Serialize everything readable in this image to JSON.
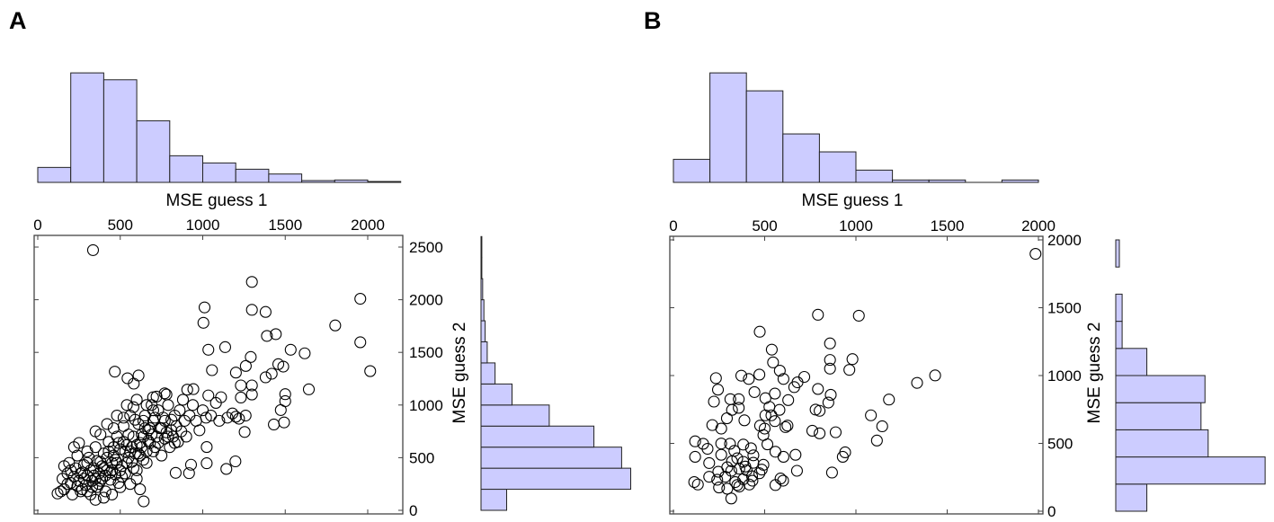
{
  "chart_data": [
    {
      "type": "scatter",
      "panel_label": "A",
      "xlabel": "MSE guess 1",
      "ylabel": "MSE guess 2",
      "xlim": [
        0,
        2200
      ],
      "ylim": [
        0,
        2600
      ],
      "xticks": [
        0,
        500,
        1000,
        1500,
        2000
      ],
      "yticks": [
        0,
        500,
        1000,
        1500,
        2000,
        2500
      ],
      "hist_x": {
        "bin_width": 200,
        "start": 0,
        "values": [
          50,
          366,
          343,
          206,
          89,
          65,
          44,
          28,
          6,
          8,
          3
        ]
      },
      "hist_y": {
        "bin_width": 200,
        "start": 0,
        "values": [
          62,
          362,
          340,
          273,
          165,
          75,
          34,
          15,
          10,
          7,
          4,
          2,
          2
        ]
      },
      "points": [
        [
          335,
          2471
        ],
        [
          1298,
          2169
        ],
        [
          1955,
          2009
        ],
        [
          1011,
          1927
        ],
        [
          1298,
          1904
        ],
        [
          1381,
          1884
        ],
        [
          1004,
          1781
        ],
        [
          1803,
          1756
        ],
        [
          1955,
          1596
        ],
        [
          1389,
          1656
        ],
        [
          1443,
          1673
        ],
        [
          1034,
          1525
        ],
        [
          1136,
          1550
        ],
        [
          1533,
          1525
        ],
        [
          1618,
          1491
        ],
        [
          1291,
          1456
        ],
        [
          1261,
          1371
        ],
        [
          2015,
          1322
        ],
        [
          1056,
          1331
        ],
        [
          467,
          1317
        ],
        [
          544,
          1254
        ],
        [
          611,
          1280
        ],
        [
          582,
          1203
        ],
        [
          1201,
          1308
        ],
        [
          1381,
          1263
        ],
        [
          1418,
          1297
        ],
        [
          1458,
          1388
        ],
        [
          1488,
          1365
        ],
        [
          1231,
          1186
        ],
        [
          1298,
          1186
        ],
        [
          1643,
          1149
        ],
        [
          1500,
          1103
        ],
        [
          1500,
          1037
        ],
        [
          1473,
          952
        ],
        [
          1431,
          815
        ],
        [
          1493,
          835
        ],
        [
          1254,
          744
        ],
        [
          1231,
          1071
        ],
        [
          1298,
          1100
        ],
        [
          1198,
          465
        ],
        [
          1143,
          393
        ],
        [
          1024,
          447
        ],
        [
          1024,
          601
        ],
        [
          836,
          356
        ],
        [
          917,
          353
        ],
        [
          929,
          433
        ],
        [
          642,
          85
        ],
        [
          1201,
          889
        ],
        [
          1111,
          1074
        ],
        [
          906,
          1146
        ],
        [
          943,
          1151
        ],
        [
          769,
          1111
        ],
        [
          699,
          1074
        ],
        [
          1034,
          1091
        ],
        [
          120,
          160
        ],
        [
          150,
          300
        ],
        [
          160,
          200
        ],
        [
          180,
          350
        ],
        [
          190,
          450
        ],
        [
          200,
          260
        ],
        [
          210,
          150
        ],
        [
          220,
          320
        ],
        [
          230,
          400
        ],
        [
          240,
          520
        ],
        [
          250,
          280
        ],
        [
          260,
          180
        ],
        [
          270,
          360
        ],
        [
          280,
          430
        ],
        [
          290,
          240
        ],
        [
          300,
          330
        ],
        [
          310,
          500
        ],
        [
          320,
          150
        ],
        [
          330,
          280
        ],
        [
          340,
          400
        ],
        [
          350,
          600
        ],
        [
          360,
          220
        ],
        [
          370,
          350
        ],
        [
          380,
          460
        ],
        [
          390,
          300
        ],
        [
          400,
          540
        ],
        [
          410,
          180
        ],
        [
          420,
          380
        ],
        [
          430,
          650
        ],
        [
          440,
          290
        ],
        [
          450,
          450
        ],
        [
          460,
          520
        ],
        [
          470,
          340
        ],
        [
          480,
          700
        ],
        [
          490,
          260
        ],
        [
          500,
          580
        ],
        [
          510,
          420
        ],
        [
          520,
          800
        ],
        [
          530,
          350
        ],
        [
          540,
          620
        ],
        [
          550,
          500
        ],
        [
          560,
          900
        ],
        [
          570,
          460
        ],
        [
          580,
          700
        ],
        [
          590,
          540
        ],
        [
          600,
          380
        ],
        [
          610,
          820
        ],
        [
          620,
          640
        ],
        [
          630,
          720
        ],
        [
          640,
          480
        ],
        [
          650,
          900
        ],
        [
          660,
          560
        ],
        [
          670,
          760
        ],
        [
          680,
          640
        ],
        [
          690,
          1000
        ],
        [
          700,
          850
        ],
        [
          710,
          600
        ],
        [
          720,
          700
        ],
        [
          730,
          950
        ],
        [
          740,
          780
        ],
        [
          750,
          520
        ],
        [
          760,
          880
        ],
        [
          770,
          680
        ],
        [
          780,
          740
        ],
        [
          790,
          1000
        ],
        [
          800,
          600
        ],
        [
          810,
          860
        ],
        [
          820,
          700
        ],
        [
          830,
          900
        ],
        [
          840,
          800
        ],
        [
          850,
          650
        ],
        [
          860,
          950
        ],
        [
          870,
          750
        ],
        [
          880,
          1050
        ],
        [
          890,
          850
        ],
        [
          900,
          700
        ],
        [
          920,
          900
        ],
        [
          940,
          1000
        ],
        [
          960,
          850
        ],
        [
          980,
          760
        ],
        [
          1000,
          950
        ],
        [
          1020,
          880
        ],
        [
          1050,
          900
        ],
        [
          1080,
          1020
        ],
        [
          1100,
          850
        ],
        [
          1150,
          880
        ],
        [
          1180,
          920
        ],
        [
          1220,
          870
        ],
        [
          1260,
          900
        ],
        [
          260,
          350
        ],
        [
          280,
          300
        ],
        [
          300,
          450
        ],
        [
          320,
          380
        ],
        [
          340,
          330
        ],
        [
          360,
          470
        ],
        [
          380,
          280
        ],
        [
          400,
          400
        ],
        [
          420,
          500
        ],
        [
          440,
          360
        ],
        [
          460,
          600
        ],
        [
          480,
          450
        ],
        [
          500,
          380
        ],
        [
          520,
          650
        ],
        [
          540,
          450
        ],
        [
          560,
          560
        ],
        [
          580,
          400
        ],
        [
          600,
          620
        ],
        [
          620,
          520
        ],
        [
          640,
          700
        ],
        [
          660,
          450
        ],
        [
          680,
          780
        ],
        [
          700,
          560
        ],
        [
          240,
          230
        ],
        [
          270,
          200
        ],
        [
          300,
          180
        ],
        [
          330,
          220
        ],
        [
          350,
          300
        ],
        [
          370,
          250
        ],
        [
          390,
          420
        ],
        [
          410,
          330
        ],
        [
          430,
          560
        ],
        [
          450,
          380
        ],
        [
          470,
          480
        ],
        [
          490,
          640
        ],
        [
          510,
          320
        ],
        [
          530,
          560
        ],
        [
          550,
          720
        ],
        [
          570,
          600
        ],
        [
          590,
          860
        ],
        [
          610,
          540
        ],
        [
          630,
          600
        ],
        [
          650,
          780
        ],
        [
          670,
          660
        ],
        [
          690,
          720
        ],
        [
          710,
          880
        ],
        [
          730,
          640
        ],
        [
          750,
          780
        ],
        [
          770,
          850
        ],
        [
          790,
          700
        ],
        [
          810,
          760
        ],
        [
          830,
          640
        ],
        [
          200,
          380
        ],
        [
          180,
          250
        ],
        [
          220,
          600
        ],
        [
          250,
          640
        ],
        [
          140,
          180
        ],
        [
          160,
          420
        ],
        [
          350,
          750
        ],
        [
          420,
          820
        ],
        [
          480,
          900
        ],
        [
          540,
          1000
        ],
        [
          600,
          1050
        ],
        [
          660,
          1000
        ],
        [
          720,
          1080
        ],
        [
          780,
          1100
        ],
        [
          300,
          560
        ],
        [
          380,
          720
        ],
        [
          460,
          780
        ],
        [
          520,
          880
        ],
        [
          580,
          980
        ],
        [
          640,
          850
        ],
        [
          700,
          950
        ],
        [
          600,
          300
        ],
        [
          500,
          220
        ],
        [
          450,
          150
        ],
        [
          620,
          200
        ],
        [
          560,
          250
        ],
        [
          400,
          120
        ],
        [
          350,
          100
        ]
      ]
    },
    {
      "type": "scatter",
      "panel_label": "B",
      "xlabel": "MSE guess 1",
      "ylabel": "MSE guess 2",
      "xlim": [
        0,
        2000
      ],
      "ylim": [
        0,
        2000
      ],
      "xticks": [
        0,
        500,
        1000,
        1500,
        2000
      ],
      "yticks": [
        0,
        500,
        1000,
        1500,
        2000
      ],
      "hist_x": {
        "bin_width": 200,
        "start": 0,
        "values": [
          77,
          366,
          306,
          162,
          102,
          41,
          8,
          8,
          0,
          8
        ]
      },
      "hist_y": {
        "bin_width": 200,
        "start": 0,
        "values": [
          78,
          375,
          232,
          214,
          224,
          78,
          16,
          16,
          0,
          9
        ]
      },
      "points": [
        [
          1984,
          1897
        ],
        [
          792,
          1448
        ],
        [
          1016,
          1441
        ],
        [
          473,
          1323
        ],
        [
          858,
          1237
        ],
        [
          539,
          1191
        ],
        [
          858,
          1115
        ],
        [
          981,
          1121
        ],
        [
          546,
          1097
        ],
        [
          858,
          1051
        ],
        [
          964,
          1042
        ],
        [
          1434,
          1001
        ],
        [
          1335,
          946
        ],
        [
          233,
          981
        ],
        [
          372,
          999
        ],
        [
          413,
          975
        ],
        [
          471,
          1007
        ],
        [
          583,
          1036
        ],
        [
          603,
          975
        ],
        [
          717,
          990
        ],
        [
          680,
          950
        ],
        [
          662,
          915
        ],
        [
          244,
          896
        ],
        [
          444,
          878
        ],
        [
          792,
          901
        ],
        [
          862,
          858
        ],
        [
          504,
          833
        ],
        [
          312,
          826
        ],
        [
          358,
          826
        ],
        [
          222,
          808
        ],
        [
          629,
          819
        ],
        [
          556,
          867
        ],
        [
          1181,
          823
        ],
        [
          849,
          801
        ],
        [
          526,
          769
        ],
        [
          358,
          762
        ],
        [
          321,
          747
        ],
        [
          581,
          747
        ],
        [
          779,
          749
        ],
        [
          801,
          740
        ],
        [
          1082,
          707
        ],
        [
          504,
          707
        ],
        [
          537,
          707
        ],
        [
          293,
          685
        ],
        [
          389,
          670
        ],
        [
          556,
          664
        ],
        [
          1144,
          626
        ],
        [
          213,
          635
        ],
        [
          262,
          609
        ],
        [
          475,
          631
        ],
        [
          500,
          609
        ],
        [
          614,
          620
        ],
        [
          625,
          631
        ],
        [
          761,
          593
        ],
        [
          801,
          574
        ],
        [
          889,
          582
        ],
        [
          1115,
          521
        ],
        [
          493,
          561
        ],
        [
          119,
          515
        ],
        [
          163,
          497
        ],
        [
          187,
          460
        ],
        [
          262,
          499
        ],
        [
          310,
          497
        ],
        [
          383,
          491
        ],
        [
          334,
          445
        ],
        [
          425,
          464
        ],
        [
          515,
          493
        ],
        [
          559,
          438
        ],
        [
          603,
          401
        ],
        [
          669,
          416
        ],
        [
          941,
          434
        ],
        [
          928,
          401
        ],
        [
          119,
          401
        ],
        [
          196,
          355
        ],
        [
          262,
          416
        ],
        [
          295,
          324
        ],
        [
          350,
          390
        ],
        [
          383,
          364
        ],
        [
          438,
          357
        ],
        [
          493,
          342
        ],
        [
          246,
          291
        ],
        [
          317,
          298
        ],
        [
          361,
          313
        ],
        [
          401,
          302
        ],
        [
          484,
          307
        ],
        [
          677,
          298
        ],
        [
          869,
          285
        ],
        [
          196,
          254
        ],
        [
          240,
          232
        ],
        [
          284,
          254
        ],
        [
          339,
          215
        ],
        [
          383,
          236
        ],
        [
          431,
          258
        ],
        [
          114,
          215
        ],
        [
          134,
          197
        ],
        [
          250,
          175
        ],
        [
          295,
          166
        ],
        [
          350,
          193
        ],
        [
          416,
          197
        ],
        [
          433,
          225
        ],
        [
          559,
          193
        ],
        [
          587,
          241
        ],
        [
          601,
          225
        ],
        [
          317,
          94
        ],
        [
          361,
          182
        ],
        [
          471,
          280
        ],
        [
          394,
          329
        ],
        [
          321,
          368
        ],
        [
          438,
          412
        ]
      ]
    }
  ]
}
